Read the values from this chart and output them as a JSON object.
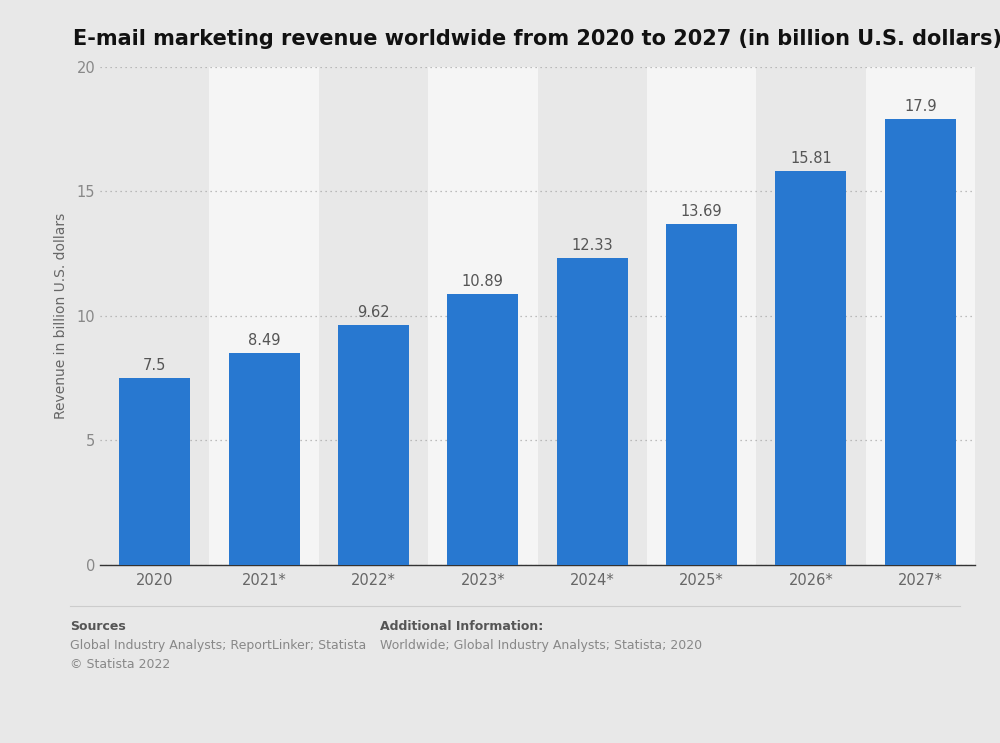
{
  "title": "E-mail marketing revenue worldwide from 2020 to 2027 (in billion U.S. dollars)",
  "categories": [
    "2020",
    "2021*",
    "2022*",
    "2023*",
    "2024*",
    "2025*",
    "2026*",
    "2027*"
  ],
  "values": [
    7.5,
    8.49,
    9.62,
    10.89,
    12.33,
    13.69,
    15.81,
    17.9
  ],
  "bar_color": "#2878d0",
  "background_color": "#e8e8e8",
  "plot_background_color": "#e8e8e8",
  "ylabel": "Revenue in billion U.S. dollars",
  "ylim": [
    0,
    20
  ],
  "yticks": [
    0,
    5,
    10,
    15,
    20
  ],
  "title_fontsize": 15,
  "ylabel_fontsize": 10,
  "tick_fontsize": 10.5,
  "value_fontsize": 10.5,
  "sources_label": "Sources",
  "sources_body": "Global Industry Analysts; ReportLinker; Statista\n© Statista 2022",
  "additional_label": "Additional Information:",
  "additional_body": "Worldwide; Global Industry Analysts; Statista; 2020",
  "footer_fontsize": 9,
  "footer_label_fontsize": 9,
  "grid_color": "#aaaaaa",
  "zebra_colors": [
    "#e8e8e8",
    "#f5f5f5"
  ],
  "bar_width": 0.65
}
